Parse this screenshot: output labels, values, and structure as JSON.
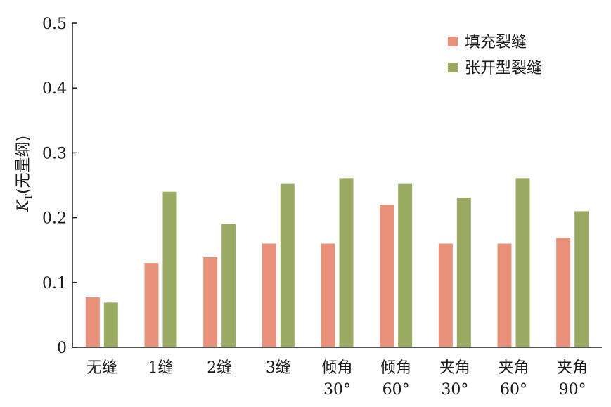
{
  "chart_data": {
    "type": "bar",
    "categories": [
      [
        "无缝"
      ],
      [
        "1缝"
      ],
      [
        "2缝"
      ],
      [
        "3缝"
      ],
      [
        "倾角",
        "30°"
      ],
      [
        "倾角",
        "60°"
      ],
      [
        "夹角",
        "30°"
      ],
      [
        "夹角",
        "60°"
      ],
      [
        "夹角",
        "90°"
      ]
    ],
    "series": [
      {
        "name": "填充裂缝",
        "color": "#e9907a",
        "values": [
          0.077,
          0.13,
          0.139,
          0.16,
          0.16,
          0.22,
          0.16,
          0.16,
          0.169
        ]
      },
      {
        "name": "张开型裂缝",
        "color": "#9aaa62",
        "values": [
          0.069,
          0.24,
          0.19,
          0.252,
          0.261,
          0.252,
          0.231,
          0.261,
          0.21
        ]
      }
    ],
    "ylabel_main": "K",
    "ylabel_sub": "T",
    "ylabel_unit": "(无量纲)",
    "ylim": [
      0,
      0.5
    ],
    "yticks": [
      0,
      0.1,
      0.2,
      0.3,
      0.4,
      0.5
    ],
    "ytick_labels": [
      "0",
      "0.1",
      "0.2",
      "0.3",
      "0.4",
      "0.5"
    ],
    "legend_position": "top-right",
    "grid": false
  }
}
